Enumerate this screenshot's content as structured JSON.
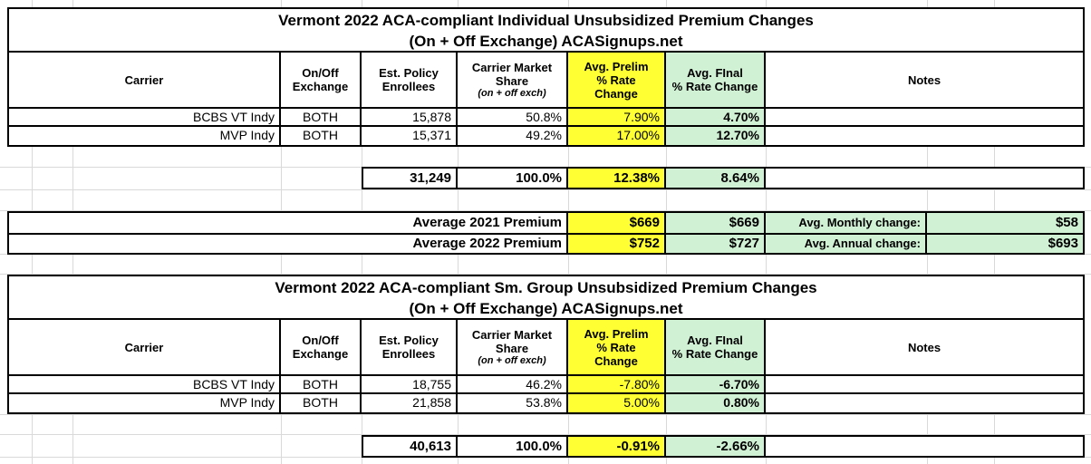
{
  "colors": {
    "prelim_bg": "#ffff33",
    "final_bg": "#d0f1d4",
    "grid_faint": "#d9d9d9",
    "border": "#000000"
  },
  "chart_data": [
    {
      "type": "table",
      "title": "Vermont 2022 ACA-compliant Individual Unsubsidized Premium Changes",
      "subtitle": "(On + Off Exchange) ACASignups.net",
      "headers": {
        "carrier": "Carrier",
        "exchange": "On/Off\nExchange",
        "enrollees": "Est. Policy\nEnrollees",
        "market_share": "Carrier Market\nShare",
        "market_share_note": "(on + off exch)",
        "prelim": "Avg. Prelim\n% Rate\nChange",
        "final": "Avg. FInal\n% Rate Change",
        "notes": "Notes"
      },
      "rows": [
        {
          "carrier": "BCBS VT Indy",
          "exchange": "BOTH",
          "enrollees": "15,878",
          "share": "50.8%",
          "prelim": "7.90%",
          "final": "4.70%",
          "notes": ""
        },
        {
          "carrier": "MVP Indy",
          "exchange": "BOTH",
          "enrollees": "15,371",
          "share": "49.2%",
          "prelim": "17.00%",
          "final": "12.70%",
          "notes": ""
        }
      ],
      "total": {
        "enrollees": "31,249",
        "share": "100.0%",
        "prelim": "12.38%",
        "final": "8.64%",
        "notes": ""
      }
    },
    {
      "type": "table",
      "title": "Vermont 2022 ACA-compliant Sm. Group Unsubsidized Premium Changes",
      "subtitle": "(On + Off Exchange) ACASignups.net",
      "headers": {
        "carrier": "Carrier",
        "exchange": "On/Off\nExchange",
        "enrollees": "Est. Policy\nEnrollees",
        "market_share": "Carrier Market\nShare",
        "market_share_note": "(on + off exch)",
        "prelim": "Avg. Prelim\n% Rate\nChange",
        "final": "Avg. FInal\n% Rate Change",
        "notes": "Notes"
      },
      "rows": [
        {
          "carrier": "BCBS VT Indy",
          "exchange": "BOTH",
          "enrollees": "18,755",
          "share": "46.2%",
          "prelim": "-7.80%",
          "final": "-6.70%",
          "notes": ""
        },
        {
          "carrier": "MVP Indy",
          "exchange": "BOTH",
          "enrollees": "21,858",
          "share": "53.8%",
          "prelim": "5.00%",
          "final": "0.80%",
          "notes": ""
        }
      ],
      "total": {
        "enrollees": "40,613",
        "share": "100.0%",
        "prelim": "-0.91%",
        "final": "-2.66%",
        "notes": ""
      }
    }
  ],
  "averages": {
    "rows": [
      {
        "label": "Average 2021 Premium",
        "prelim": "$669",
        "final": "$669",
        "change_label": "Avg. Monthly change:",
        "change_value": "$58"
      },
      {
        "label": "Average 2022 Premium",
        "prelim": "$752",
        "final": "$727",
        "change_label": "Avg. Annual change:",
        "change_value": "$693"
      }
    ]
  }
}
